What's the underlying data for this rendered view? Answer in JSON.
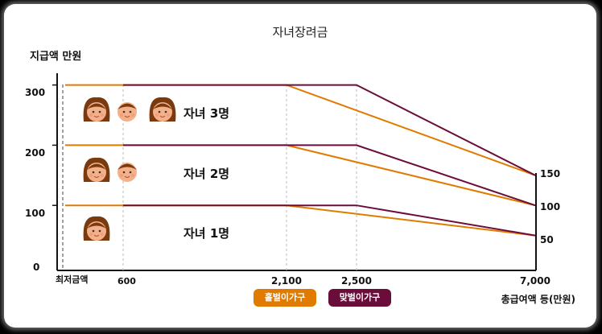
{
  "chart_data": {
    "type": "line",
    "title": "자녀장려금",
    "ylabel": "지급액 만원",
    "xlabel": "총급여액 등(만원)",
    "ylim": [
      0,
      340
    ],
    "y_ticks": [
      "0",
      "100",
      "200",
      "300"
    ],
    "x_labels": {
      "min_wage": "최저금액",
      "x600": "600",
      "x2100": "2,100",
      "x2500": "2,500",
      "x7000": "7,000"
    },
    "right_labels": [
      "150",
      "100",
      "50"
    ],
    "child_labels": [
      "자녀 3명",
      "자녀 2명",
      "자녀 1명"
    ],
    "series": [
      {
        "name": "홑벌이가구",
        "color": "#e07b00",
        "lines": [
          {
            "children": 3,
            "x": [
              "최저금액",
              "2,100",
              "7,000"
            ],
            "y": [
              300,
              300,
              150
            ]
          },
          {
            "children": 2,
            "x": [
              "최저금액",
              "2,100",
              "7,000"
            ],
            "y": [
              200,
              200,
              100
            ]
          },
          {
            "children": 1,
            "x": [
              "최저금액",
              "2,100",
              "7,000"
            ],
            "y": [
              100,
              100,
              50
            ]
          }
        ]
      },
      {
        "name": "맞벌이가구",
        "color": "#6b0d3a",
        "lines": [
          {
            "children": 3,
            "x": [
              "600",
              "2,500",
              "7,000"
            ],
            "y": [
              300,
              300,
              150
            ]
          },
          {
            "children": 2,
            "x": [
              "600",
              "2,500",
              "7,000"
            ],
            "y": [
              200,
              200,
              100
            ]
          },
          {
            "children": 1,
            "x": [
              "600",
              "2,500",
              "7,000"
            ],
            "y": [
              100,
              100,
              50
            ]
          }
        ]
      }
    ],
    "legend": {
      "single": {
        "label": "홑벌이가구",
        "color": "#e07b00"
      },
      "dual": {
        "label": "맞벌이가구",
        "color": "#6b0d3a"
      }
    },
    "face_icons": {
      "three": 3,
      "two": 2,
      "one": 1
    }
  }
}
